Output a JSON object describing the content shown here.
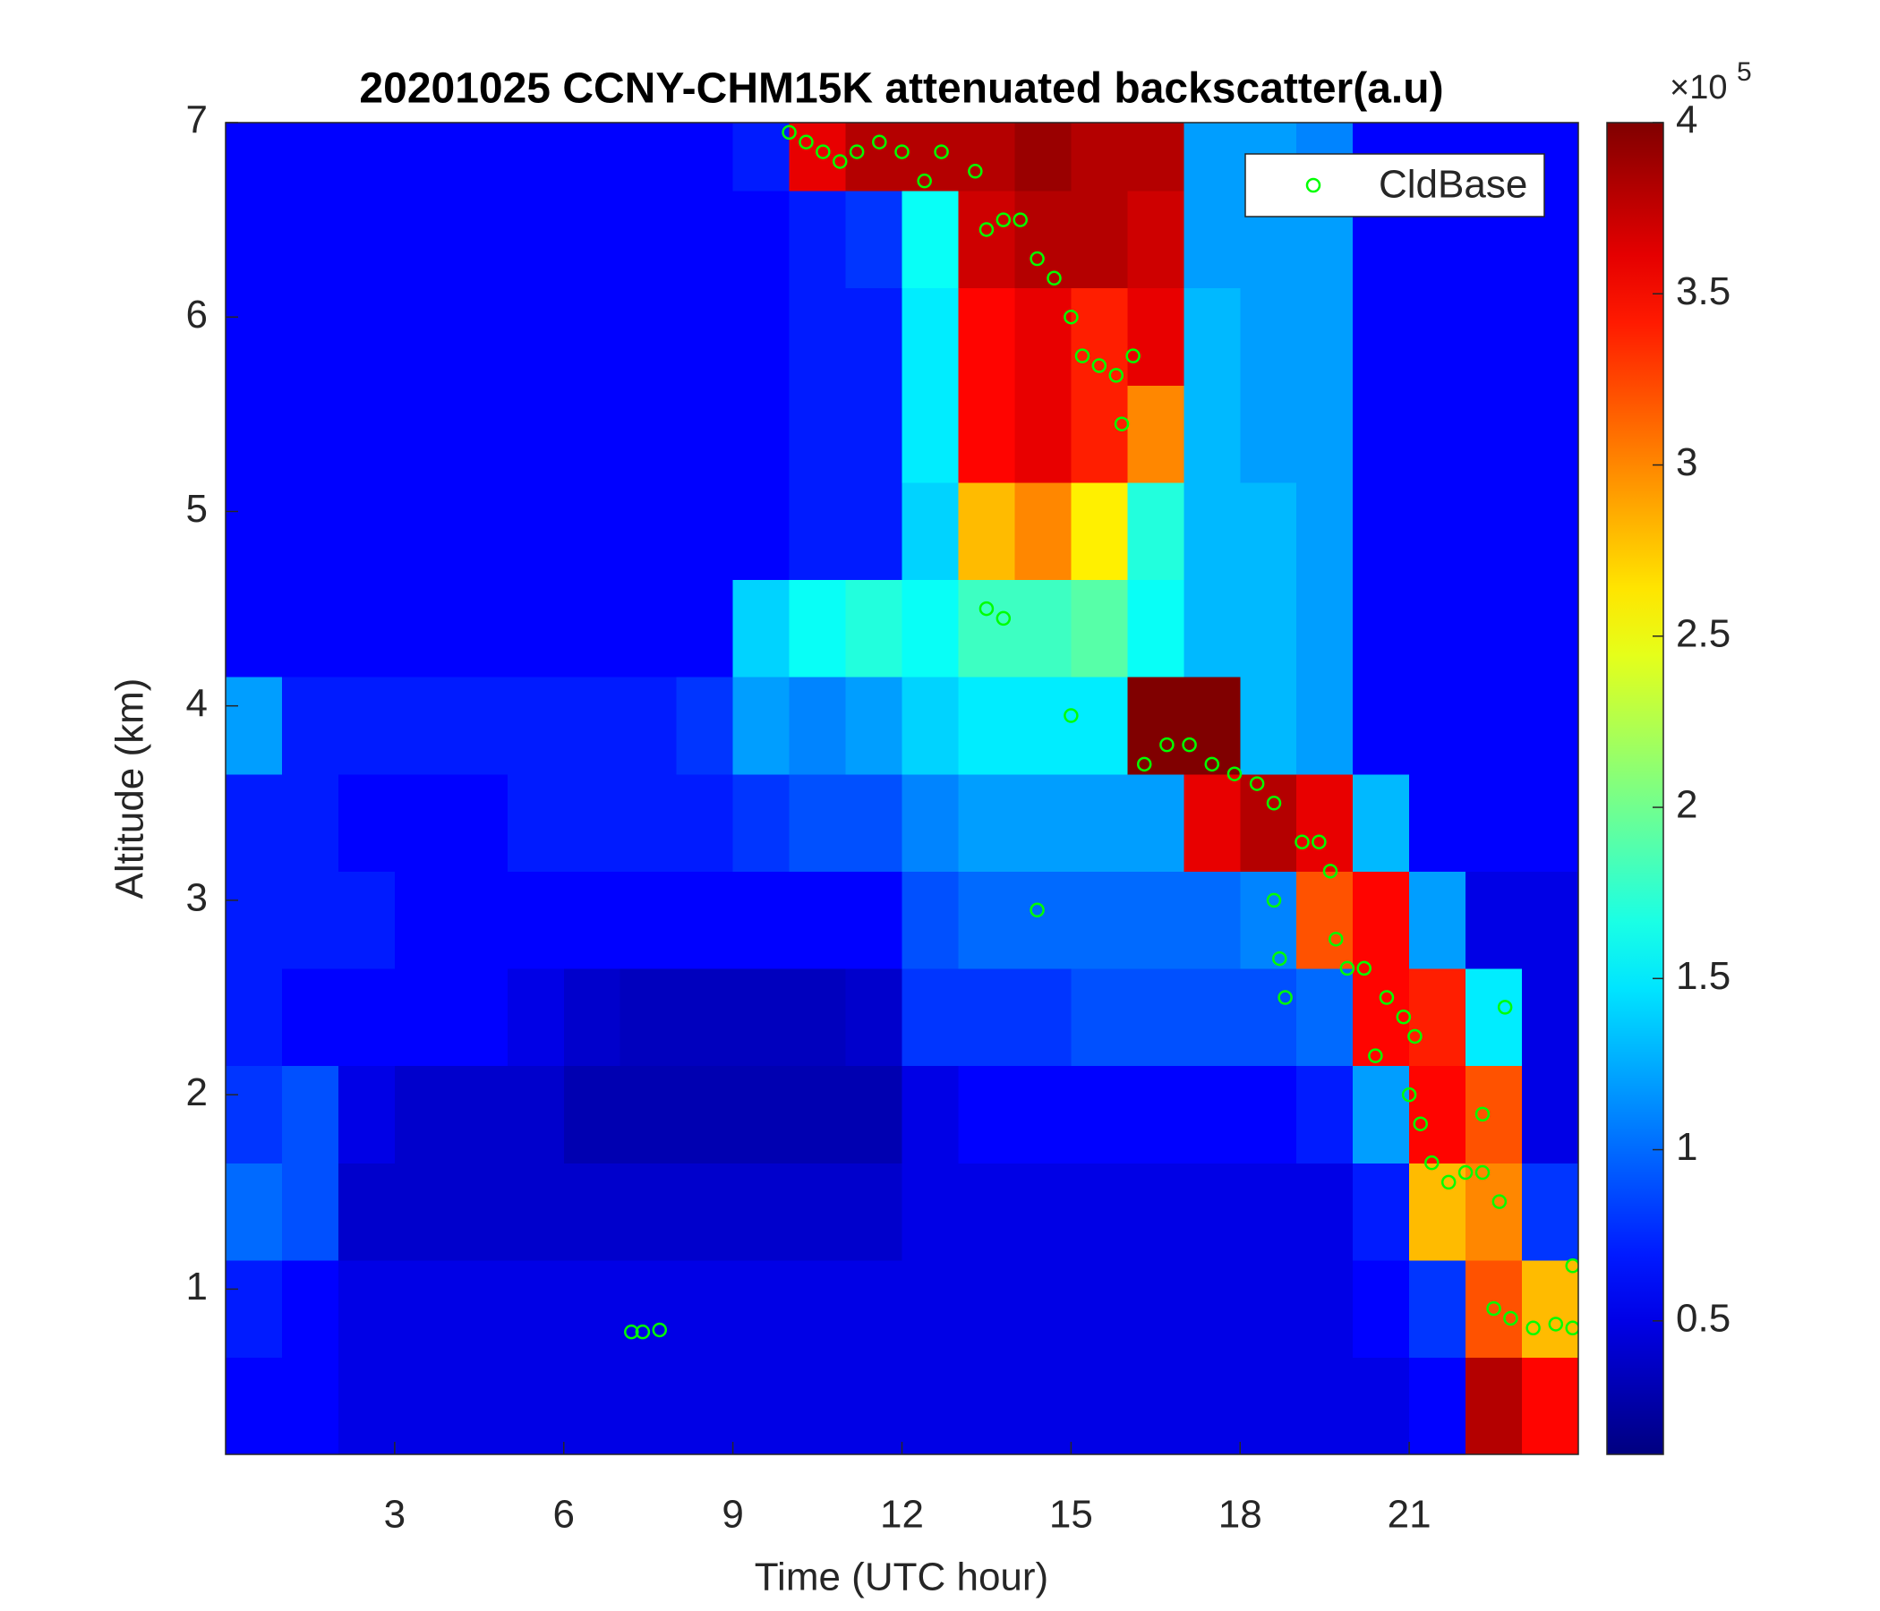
{
  "chart_data": {
    "type": "heatmap",
    "title": "20201025 CCNY-CHM15K attenuated backscatter(a.u)",
    "xlabel": "Time (UTC hour)",
    "ylabel": "Altitude (km)",
    "xlim": [
      0,
      24
    ],
    "ylim": [
      0.15,
      7
    ],
    "xticks": [
      3,
      6,
      9,
      12,
      15,
      18,
      21
    ],
    "yticks": [
      1,
      2,
      3,
      4,
      5,
      6,
      7
    ],
    "x": [
      0.5,
      1.5,
      2.5,
      3.5,
      4.5,
      5.5,
      6.5,
      7.5,
      8.5,
      9.5,
      10.5,
      11.5,
      12.5,
      13.5,
      14.5,
      15.5,
      16.5,
      17.5,
      18.5,
      19.5,
      20.5,
      21.5,
      22.5,
      23.5
    ],
    "y": [
      0.4,
      0.9,
      1.4,
      1.9,
      2.4,
      2.9,
      3.4,
      3.9,
      4.4,
      4.9,
      5.4,
      5.9,
      6.4,
      6.9
    ],
    "z": [
      [
        0.6,
        0.6,
        0.5,
        0.5,
        0.5,
        0.5,
        0.5,
        0.5,
        0.5,
        0.5,
        0.5,
        0.5,
        0.5,
        0.5,
        0.5,
        0.5,
        0.5,
        0.5,
        0.5,
        0.5,
        0.5,
        0.6,
        3.8,
        3.5
      ],
      [
        0.7,
        0.6,
        0.5,
        0.5,
        0.5,
        0.5,
        0.5,
        0.5,
        0.5,
        0.5,
        0.5,
        0.5,
        0.5,
        0.5,
        0.5,
        0.5,
        0.5,
        0.5,
        0.5,
        0.5,
        0.6,
        0.8,
        3.2,
        2.8
      ],
      [
        1.0,
        0.9,
        0.4,
        0.4,
        0.4,
        0.4,
        0.4,
        0.4,
        0.4,
        0.4,
        0.4,
        0.4,
        0.5,
        0.5,
        0.5,
        0.5,
        0.5,
        0.5,
        0.5,
        0.5,
        0.7,
        2.8,
        3.0,
        0.8
      ],
      [
        0.8,
        0.9,
        0.5,
        0.4,
        0.4,
        0.4,
        0.3,
        0.3,
        0.3,
        0.3,
        0.3,
        0.3,
        0.5,
        0.6,
        0.6,
        0.6,
        0.6,
        0.6,
        0.6,
        0.7,
        1.2,
        3.5,
        3.2,
        0.5
      ],
      [
        0.7,
        0.6,
        0.6,
        0.6,
        0.6,
        0.5,
        0.4,
        0.35,
        0.35,
        0.35,
        0.35,
        0.4,
        0.8,
        0.8,
        0.8,
        0.9,
        0.9,
        0.9,
        0.9,
        1.0,
        3.5,
        3.4,
        1.5,
        0.5
      ],
      [
        0.7,
        0.7,
        0.7,
        0.6,
        0.6,
        0.6,
        0.6,
        0.6,
        0.6,
        0.6,
        0.6,
        0.6,
        0.9,
        1.0,
        1.0,
        1.0,
        1.0,
        1.0,
        1.1,
        3.2,
        3.5,
        1.2,
        0.5,
        0.5
      ],
      [
        0.7,
        0.7,
        0.6,
        0.6,
        0.6,
        0.7,
        0.7,
        0.7,
        0.7,
        0.8,
        0.9,
        0.9,
        1.1,
        1.2,
        1.2,
        1.2,
        1.2,
        3.6,
        3.8,
        3.6,
        1.3,
        0.6,
        0.6,
        0.6
      ],
      [
        1.2,
        0.7,
        0.7,
        0.7,
        0.7,
        0.7,
        0.7,
        0.7,
        0.8,
        1.2,
        1.1,
        1.2,
        1.4,
        1.5,
        1.5,
        1.5,
        4.0,
        4.0,
        1.3,
        1.2,
        0.6,
        0.6,
        0.6,
        0.6
      ],
      [
        0.6,
        0.6,
        0.6,
        0.6,
        0.6,
        0.6,
        0.6,
        0.6,
        0.6,
        1.4,
        1.6,
        1.7,
        1.6,
        1.8,
        1.8,
        1.9,
        1.6,
        1.3,
        1.3,
        1.2,
        0.6,
        0.6,
        0.6,
        0.6
      ],
      [
        0.6,
        0.6,
        0.6,
        0.6,
        0.6,
        0.6,
        0.6,
        0.6,
        0.6,
        0.6,
        0.7,
        0.7,
        1.4,
        2.8,
        3.0,
        2.6,
        1.7,
        1.3,
        1.3,
        1.2,
        0.6,
        0.6,
        0.6,
        0.6
      ],
      [
        0.6,
        0.6,
        0.6,
        0.6,
        0.6,
        0.6,
        0.6,
        0.6,
        0.6,
        0.6,
        0.7,
        0.7,
        1.5,
        3.5,
        3.6,
        3.4,
        3.0,
        1.3,
        1.2,
        1.2,
        0.6,
        0.6,
        0.6,
        0.6
      ],
      [
        0.6,
        0.6,
        0.6,
        0.6,
        0.6,
        0.6,
        0.6,
        0.6,
        0.6,
        0.6,
        0.7,
        0.7,
        1.5,
        3.5,
        3.6,
        3.4,
        3.6,
        1.3,
        1.2,
        1.2,
        0.6,
        0.6,
        0.6,
        0.6
      ],
      [
        0.6,
        0.6,
        0.6,
        0.6,
        0.6,
        0.6,
        0.6,
        0.6,
        0.6,
        0.6,
        0.7,
        0.8,
        1.6,
        3.7,
        3.8,
        3.8,
        3.7,
        1.2,
        1.2,
        1.2,
        0.6,
        0.6,
        0.6,
        0.6
      ],
      [
        0.6,
        0.6,
        0.6,
        0.6,
        0.6,
        0.6,
        0.6,
        0.6,
        0.6,
        0.7,
        3.6,
        3.8,
        3.8,
        3.8,
        3.9,
        3.8,
        3.8,
        1.2,
        1.2,
        1.1,
        0.6,
        0.6,
        0.6,
        0.6
      ]
    ],
    "colormap": "jet",
    "clim": [
      0.11,
      4
    ],
    "cticks": [
      0.5,
      1,
      1.5,
      2,
      2.5,
      3,
      3.5,
      4
    ],
    "color_scale": {
      "multiplier": "×10",
      "exponent": 5
    },
    "legend": "northeast",
    "series": [
      {
        "name": "CldBase",
        "type": "scatter",
        "color": "#00ff00",
        "x": [
          10.0,
          10.3,
          10.6,
          10.9,
          11.2,
          11.6,
          12.0,
          12.4,
          12.7,
          13.3,
          13.5,
          13.8,
          14.1,
          14.4,
          14.7,
          15.0,
          15.2,
          15.5,
          15.8,
          15.9,
          16.1,
          13.5,
          13.8,
          14.4,
          15.0,
          16.3,
          16.7,
          17.1,
          17.5,
          17.9,
          18.3,
          18.6,
          18.6,
          18.7,
          18.8,
          19.1,
          19.4,
          19.6,
          19.7,
          19.9,
          20.2,
          20.4,
          20.6,
          20.9,
          21.1,
          21.0,
          21.2,
          21.4,
          21.7,
          22.0,
          22.3,
          22.6,
          22.7,
          22.3,
          22.5,
          22.8,
          23.2,
          23.6,
          23.9,
          23.9,
          7.2,
          7.4,
          7.7
        ],
        "y": [
          6.95,
          6.9,
          6.85,
          6.8,
          6.85,
          6.9,
          6.85,
          6.7,
          6.85,
          6.75,
          6.45,
          6.5,
          6.5,
          6.3,
          6.2,
          6.0,
          5.8,
          5.75,
          5.7,
          5.45,
          5.8,
          4.5,
          4.45,
          2.95,
          3.95,
          3.7,
          3.8,
          3.8,
          3.7,
          3.65,
          3.6,
          3.5,
          3.0,
          2.7,
          2.5,
          3.3,
          3.3,
          3.15,
          2.8,
          2.65,
          2.65,
          2.2,
          2.5,
          2.4,
          2.3,
          2.0,
          1.85,
          1.65,
          1.55,
          1.6,
          1.6,
          1.45,
          2.45,
          1.9,
          0.9,
          0.85,
          0.8,
          0.82,
          0.8,
          1.12,
          0.78,
          0.78,
          0.79
        ]
      }
    ]
  }
}
